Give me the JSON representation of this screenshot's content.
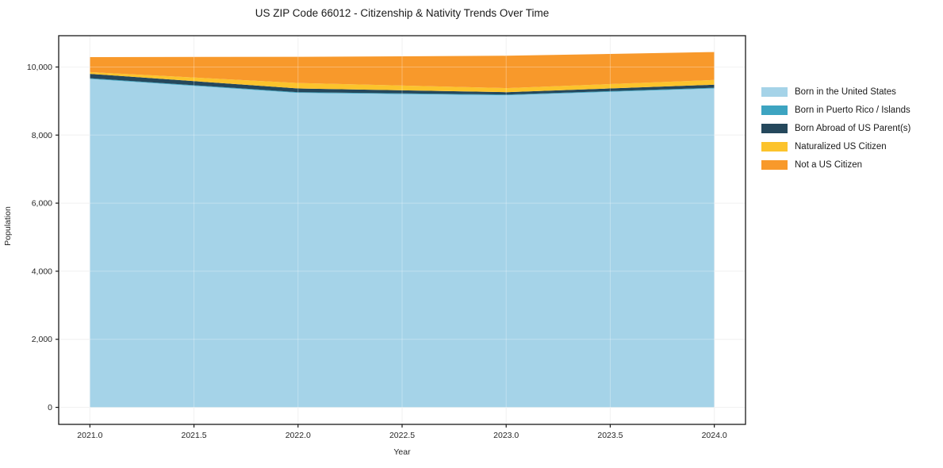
{
  "title": "US ZIP Code 66012 - Citizenship & Nativity Trends Over Time",
  "chart_data": {
    "type": "area",
    "stacked": true,
    "title": "US ZIP Code 66012 - Citizenship & Nativity Trends Over Time",
    "xlabel": "Year",
    "ylabel": "Population",
    "x": [
      2021,
      2022,
      2023,
      2024
    ],
    "series": [
      {
        "name": "Born in the United States",
        "color": "#a5d3e8",
        "values": [
          9650,
          9240,
          9170,
          9370
        ]
      },
      {
        "name": "Born in Puerto Rico / Islands",
        "color": "#3da4c1",
        "values": [
          20,
          20,
          20,
          20
        ]
      },
      {
        "name": "Born Abroad of US Parent(s)",
        "color": "#25485c",
        "values": [
          130,
          110,
          70,
          90
        ]
      },
      {
        "name": "Naturalized US Citizen",
        "color": "#fcc32c",
        "values": [
          50,
          160,
          120,
          140
        ]
      },
      {
        "name": "Not a US Citizen",
        "color": "#f8992b",
        "values": [
          440,
          770,
          950,
          820
        ]
      }
    ],
    "totals": [
      10290,
      10300,
      10330,
      10440
    ],
    "xticks": [
      2021.0,
      2021.5,
      2022.0,
      2022.5,
      2023.0,
      2023.5,
      2024.0
    ],
    "xtick_labels": [
      "2021.0",
      "2021.5",
      "2022.0",
      "2022.5",
      "2023.0",
      "2023.5",
      "2024.0"
    ],
    "yticks": [
      0,
      2000,
      4000,
      6000,
      8000,
      10000
    ],
    "ytick_labels": [
      "0",
      "2,000",
      "4,000",
      "6,000",
      "8,000",
      "10,000"
    ],
    "xlim": [
      2020.85,
      2024.15
    ],
    "ylim": [
      -500,
      10920
    ],
    "grid": true,
    "grid_color": "#ececec",
    "spine_color": "#1a1a1a",
    "background": "#ffffff",
    "legend_position": "outside-right"
  }
}
